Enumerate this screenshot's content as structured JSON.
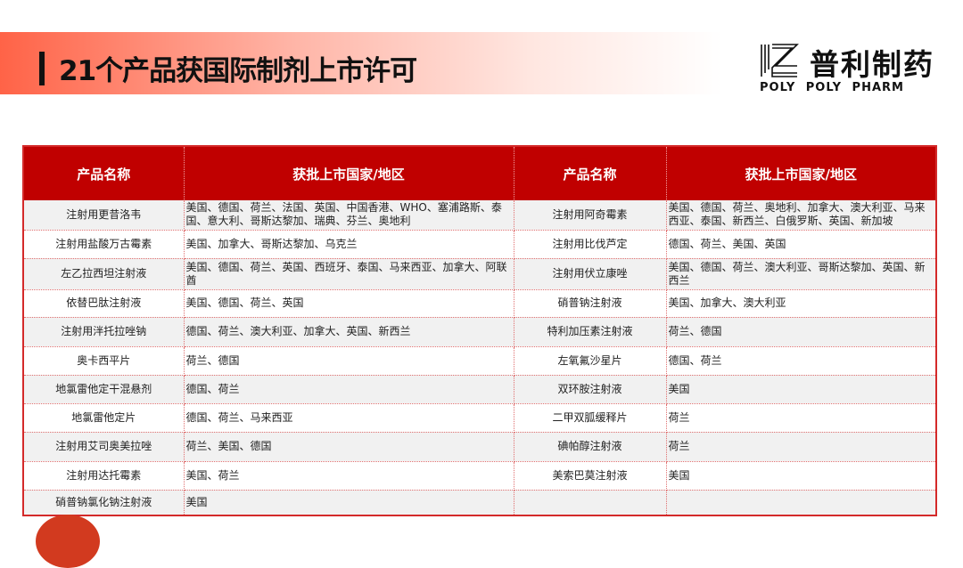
{
  "header": {
    "title": "21个产品获国际制剂上市许可"
  },
  "logo": {
    "cn": "普利制药",
    "en": "POLY POLY PHARM"
  },
  "table": {
    "headers": [
      "产品名称",
      "获批上市国家/地区",
      "产品名称",
      "获批上市国家/地区"
    ],
    "rows": [
      [
        "注射用更昔洛韦",
        "美国、德国、荷兰、法国、英国、中国香港、WHO、塞浦路斯、泰国、意大利、哥斯达黎加、瑞典、芬兰、奥地利",
        "注射用阿奇霉素",
        "美国、德国、荷兰、奥地利、加拿大、澳大利亚、马来西亚、泰国、新西兰、白俄罗斯、英国、新加坡"
      ],
      [
        "注射用盐酸万古霉素",
        "美国、加拿大、哥斯达黎加、乌克兰",
        "注射用比伐芦定",
        "德国、荷兰、美国、英国"
      ],
      [
        "左乙拉西坦注射液",
        "美国、德国、荷兰、英国、西班牙、泰国、马来西亚、加拿大、阿联酋",
        "注射用伏立康唑",
        "美国、德国、荷兰、澳大利亚、哥斯达黎加、英国、新西兰"
      ],
      [
        "依替巴肽注射液",
        "美国、德国、荷兰、英国",
        "硝普钠注射液",
        "美国、加拿大、澳大利亚"
      ],
      [
        "注射用泮托拉唑钠",
        "德国、荷兰、澳大利亚、加拿大、英国、新西兰",
        "特利加压素注射液",
        "荷兰、德国"
      ],
      [
        "奥卡西平片",
        "荷兰、德国",
        "左氧氟沙星片",
        "德国、荷兰"
      ],
      [
        "地氯雷他定干混悬剂",
        "德国、荷兰",
        "双环胺注射液",
        "美国"
      ],
      [
        "地氯雷他定片",
        "德国、荷兰、马来西亚",
        "二甲双胍缓释片",
        "荷兰"
      ],
      [
        "注射用艾司奥美拉唑",
        "荷兰、美国、德国",
        "碘帕醇注射液",
        "荷兰"
      ],
      [
        "注射用达托霉素",
        "美国、荷兰",
        "美索巴莫注射液",
        "美国"
      ],
      [
        "硝普钠氯化钠注射液",
        "美国",
        "",
        ""
      ]
    ]
  },
  "colors": {
    "accent": "#c00000",
    "band": "#ff6347"
  }
}
